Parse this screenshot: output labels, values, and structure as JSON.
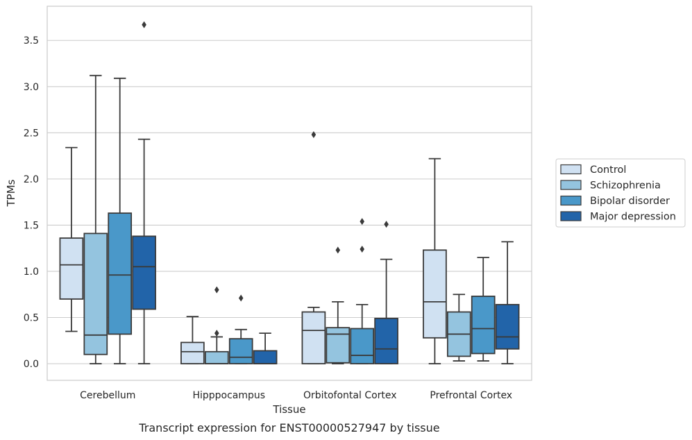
{
  "chart_data": {
    "type": "box",
    "caption": "Transcript expression for ENST00000527947 by tissue",
    "xlabel": "Tissue",
    "ylabel": "TPMs",
    "ylim": [
      -0.18,
      3.87
    ],
    "yticks": [
      0.0,
      0.5,
      1.0,
      1.5,
      2.0,
      2.5,
      3.0,
      3.5
    ],
    "ytick_labels": [
      "0.0",
      "0.5",
      "1.0",
      "1.5",
      "2.0",
      "2.5",
      "3.0",
      "3.5"
    ],
    "grid": "horizontal",
    "legend_position": "right",
    "categories": [
      "Cerebellum",
      "Hipppocampus",
      "Orbitofontal Cortex",
      "Prefrontal Cortex"
    ],
    "series": [
      {
        "name": "Control",
        "color": "#d0e1f2",
        "boxes": [
          {
            "whisker_low": 0.35,
            "q1": 0.7,
            "median": 1.07,
            "q3": 1.36,
            "whisker_high": 2.34,
            "outliers": []
          },
          {
            "whisker_low": 0.0,
            "q1": 0.0,
            "median": 0.13,
            "q3": 0.23,
            "whisker_high": 0.51,
            "outliers": []
          },
          {
            "whisker_low": 0.0,
            "q1": 0.0,
            "median": 0.36,
            "q3": 0.56,
            "whisker_high": 0.61,
            "outliers": [
              2.48
            ]
          },
          {
            "whisker_low": 0.0,
            "q1": 0.28,
            "median": 0.67,
            "q3": 1.23,
            "whisker_high": 2.22,
            "outliers": []
          }
        ]
      },
      {
        "name": "Schizophrenia",
        "color": "#94c4df",
        "boxes": [
          {
            "whisker_low": 0.0,
            "q1": 0.1,
            "median": 0.31,
            "q3": 1.41,
            "whisker_high": 3.12,
            "outliers": []
          },
          {
            "whisker_low": 0.0,
            "q1": 0.0,
            "median": 0.0,
            "q3": 0.13,
            "whisker_high": 0.29,
            "outliers": [
              0.33,
              0.8
            ]
          },
          {
            "whisker_low": 0.0,
            "q1": 0.01,
            "median": 0.32,
            "q3": 0.39,
            "whisker_high": 0.67,
            "outliers": [
              1.23
            ]
          },
          {
            "whisker_low": 0.03,
            "q1": 0.08,
            "median": 0.32,
            "q3": 0.56,
            "whisker_high": 0.75,
            "outliers": []
          }
        ]
      },
      {
        "name": "Bipolar disorder",
        "color": "#4a98c9",
        "boxes": [
          {
            "whisker_low": 0.0,
            "q1": 0.32,
            "median": 0.96,
            "q3": 1.63,
            "whisker_high": 3.09,
            "outliers": []
          },
          {
            "whisker_low": 0.0,
            "q1": 0.0,
            "median": 0.07,
            "q3": 0.27,
            "whisker_high": 0.37,
            "outliers": [
              0.71
            ]
          },
          {
            "whisker_low": 0.0,
            "q1": 0.0,
            "median": 0.09,
            "q3": 0.38,
            "whisker_high": 0.64,
            "outliers": [
              1.24,
              1.54
            ]
          },
          {
            "whisker_low": 0.03,
            "q1": 0.11,
            "median": 0.38,
            "q3": 0.73,
            "whisker_high": 1.15,
            "outliers": []
          }
        ]
      },
      {
        "name": "Major depression",
        "color": "#2264a9",
        "boxes": [
          {
            "whisker_low": 0.0,
            "q1": 0.59,
            "median": 1.05,
            "q3": 1.38,
            "whisker_high": 2.43,
            "outliers": [
              3.67
            ]
          },
          {
            "whisker_low": 0.0,
            "q1": 0.0,
            "median": 0.0,
            "q3": 0.14,
            "whisker_high": 0.33,
            "outliers": []
          },
          {
            "whisker_low": 0.0,
            "q1": 0.0,
            "median": 0.16,
            "q3": 0.49,
            "whisker_high": 1.13,
            "outliers": [
              1.51
            ]
          },
          {
            "whisker_low": 0.0,
            "q1": 0.16,
            "median": 0.29,
            "q3": 0.64,
            "whisker_high": 1.32,
            "outliers": []
          }
        ]
      }
    ]
  }
}
